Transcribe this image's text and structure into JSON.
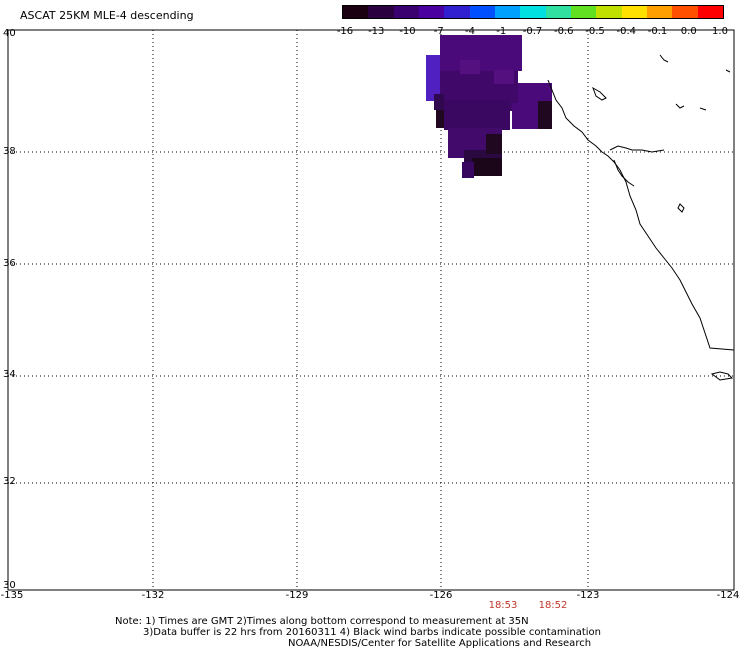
{
  "title": "ASCAT 25KM MLE-4 descending",
  "colorbar": {
    "labels": [
      "-16",
      "-13",
      "-10",
      "-7",
      "-4",
      "-1",
      "-0.7",
      "-0.6",
      "-0.5",
      "-0.4",
      "-0.1",
      "0.0",
      "1.0"
    ],
    "colors": [
      "#1a0010",
      "#2a0040",
      "#3a0070",
      "#4a00a0",
      "#3020d0",
      "#0050ff",
      "#00a0ff",
      "#00e0e0",
      "#30e0a0",
      "#60e020",
      "#c0e000",
      "#ffe000",
      "#ffa000",
      "#ff5000",
      "#ff0000"
    ]
  },
  "axes": {
    "y_ticks": [
      "40",
      "38",
      "36",
      "34",
      "32",
      "30"
    ],
    "x_ticks": [
      "-135",
      "-132",
      "-129",
      "-126",
      "-123",
      "-124"
    ]
  },
  "times": [
    "18:53",
    "18:52"
  ],
  "notes": {
    "line1": "Note: 1) Times are GMT 2)Times along bottom correspond to measurement at 35N",
    "line2": "3)Data buffer is 22 hrs from 20160311 4) Black wind barbs indicate possible contamination",
    "line3": "NOAA/NESDIS/Center for Satellite Applications and Research"
  },
  "colors": {
    "data_purple": "#4a0a7a",
    "data_dark": "#200820",
    "data_blue": "#5020c0"
  }
}
